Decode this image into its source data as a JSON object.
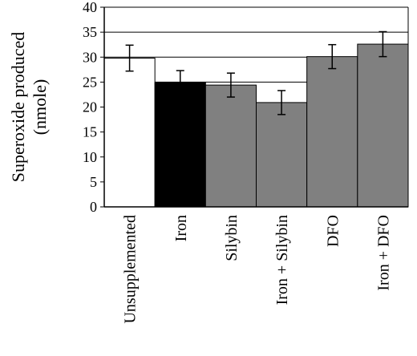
{
  "chart_data": {
    "type": "bar",
    "title": "",
    "xlabel": "",
    "ylabel_lines": [
      "Superoxide produced",
      "(nmole)"
    ],
    "ylim": [
      0,
      40
    ],
    "yticks": [
      0,
      5,
      10,
      15,
      20,
      25,
      30,
      35,
      40
    ],
    "grid": true,
    "legend": "none",
    "categories": [
      "Unsupplemented",
      "Iron",
      "Silybin",
      "Iron + Silybin",
      "DFO",
      "Iron + DFO"
    ],
    "values": [
      29.8,
      24.9,
      24.4,
      20.9,
      30.1,
      32.6
    ],
    "errors": [
      2.6,
      2.4,
      2.4,
      2.4,
      2.4,
      2.5
    ],
    "bar_colors": [
      "#ffffff",
      "#000000",
      "#808080",
      "#808080",
      "#808080",
      "#808080"
    ]
  }
}
